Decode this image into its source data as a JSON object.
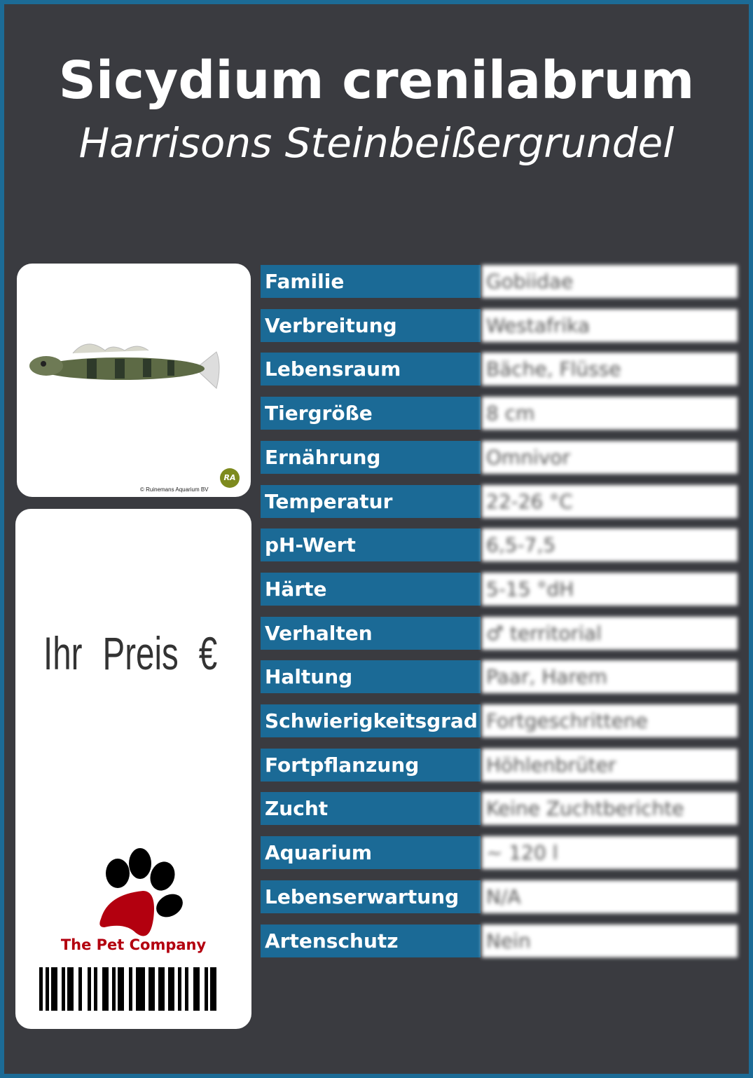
{
  "header": {
    "scientific_name": "Sicydium crenilabrum",
    "common_name": "Harrisons Steinbeißergrundel"
  },
  "photo": {
    "copyright": "© Ruinemans Aquarium BV",
    "logo_text": "RA"
  },
  "price": {
    "label": "Ihr Preis €"
  },
  "brand": {
    "name": "The Pet Company",
    "colors": {
      "paw_pad": "#b3000f",
      "toes": "#000000"
    }
  },
  "colors": {
    "background": "#3a3b40",
    "accent": "#1b6a96"
  },
  "facts": [
    {
      "label": "Familie",
      "value": "Gobiidae"
    },
    {
      "label": "Verbreitung",
      "value": "Westafrika"
    },
    {
      "label": "Lebensraum",
      "value": "Bäche, Flüsse"
    },
    {
      "label": "Tiergröße",
      "value": "8 cm"
    },
    {
      "label": "Ernährung",
      "value": "Omnivor"
    },
    {
      "label": "Temperatur",
      "value": "22-26 °C"
    },
    {
      "label": "pH-Wert",
      "value": "6,5-7,5"
    },
    {
      "label": "Härte",
      "value": "5-15 °dH"
    },
    {
      "label": "Verhalten",
      "value": "♂ territorial"
    },
    {
      "label": "Haltung",
      "value": "Paar, Harem"
    },
    {
      "label": "Schwierigkeitsgrad",
      "value": "Fortgeschrittene"
    },
    {
      "label": "Fortpflanzung",
      "value": "Höhlenbrüter"
    },
    {
      "label": "Zucht",
      "value": "Keine Zuchtberichte"
    },
    {
      "label": "Aquarium",
      "value": "~ 120 l"
    },
    {
      "label": "Lebenserwartung",
      "value": "N/A"
    },
    {
      "label": "Artenschutz",
      "value": "Nein"
    }
  ]
}
